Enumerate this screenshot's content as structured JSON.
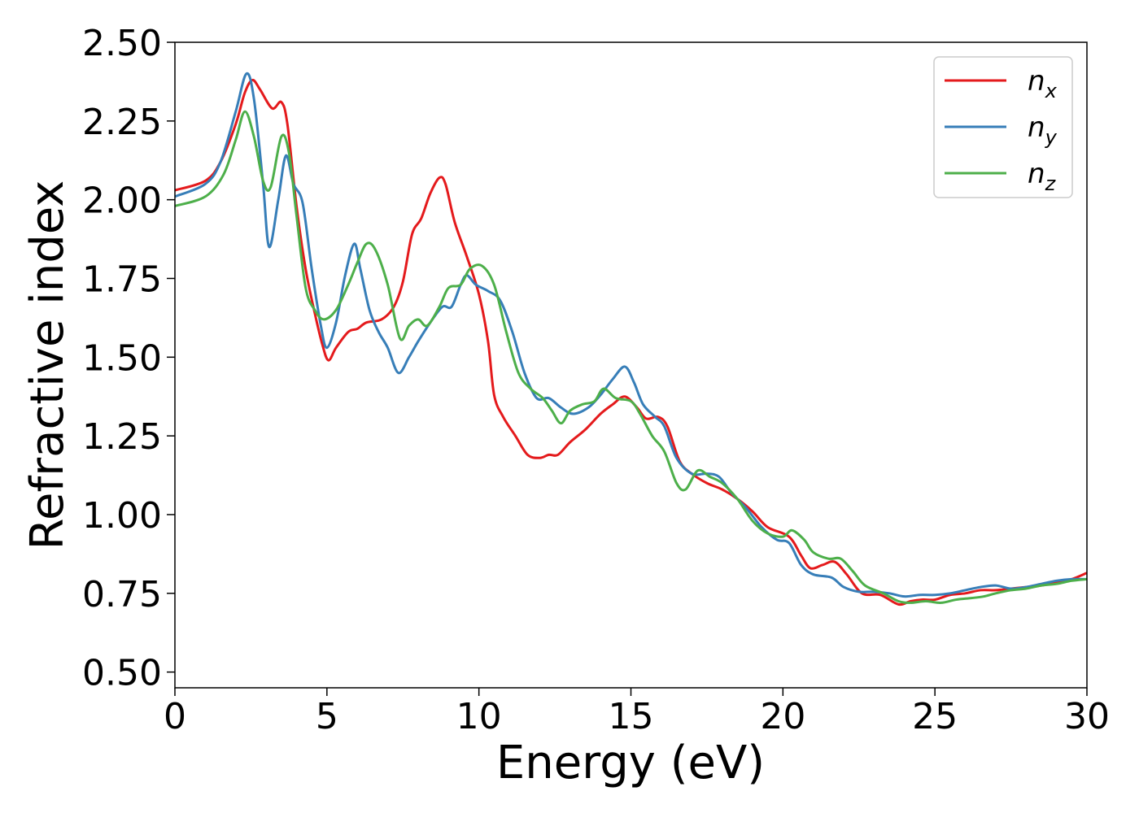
{
  "chart_data": {
    "type": "line",
    "xlabel": "Energy (eV)",
    "ylabel": "Refractive index",
    "xlim": [
      0,
      30
    ],
    "ylim": [
      0.45,
      2.5
    ],
    "xticks": [
      0,
      5,
      10,
      15,
      20,
      25,
      30
    ],
    "xtick_labels": [
      "0",
      "5",
      "10",
      "15",
      "20",
      "25",
      "30"
    ],
    "yticks": [
      0.5,
      0.75,
      1.0,
      1.25,
      1.5,
      1.75,
      2.0,
      2.25,
      2.5
    ],
    "ytick_labels": [
      "0.50",
      "0.75",
      "1.00",
      "1.25",
      "1.50",
      "1.75",
      "2.00",
      "2.25",
      "2.50"
    ],
    "grid": false,
    "legend": "top-right",
    "series": [
      {
        "name": "n",
        "subscript": "x",
        "color": "#e41a1c",
        "points": [
          [
            0,
            2.03
          ],
          [
            1,
            2.06
          ],
          [
            1.5,
            2.12
          ],
          [
            2,
            2.24
          ],
          [
            2.3,
            2.34
          ],
          [
            2.55,
            2.38
          ],
          [
            2.8,
            2.35
          ],
          [
            3.2,
            2.29
          ],
          [
            3.5,
            2.31
          ],
          [
            3.7,
            2.24
          ],
          [
            4.0,
            1.98
          ],
          [
            4.3,
            1.78
          ],
          [
            4.6,
            1.64
          ],
          [
            4.85,
            1.54
          ],
          [
            5.05,
            1.49
          ],
          [
            5.3,
            1.53
          ],
          [
            5.7,
            1.58
          ],
          [
            6.0,
            1.59
          ],
          [
            6.3,
            1.61
          ],
          [
            6.8,
            1.62
          ],
          [
            7.2,
            1.66
          ],
          [
            7.5,
            1.74
          ],
          [
            7.8,
            1.89
          ],
          [
            8.1,
            1.94
          ],
          [
            8.4,
            2.02
          ],
          [
            8.7,
            2.07
          ],
          [
            8.9,
            2.05
          ],
          [
            9.2,
            1.93
          ],
          [
            9.6,
            1.82
          ],
          [
            10.0,
            1.7
          ],
          [
            10.3,
            1.55
          ],
          [
            10.5,
            1.38
          ],
          [
            10.8,
            1.31
          ],
          [
            11.2,
            1.25
          ],
          [
            11.6,
            1.19
          ],
          [
            12.0,
            1.18
          ],
          [
            12.3,
            1.19
          ],
          [
            12.6,
            1.19
          ],
          [
            13.0,
            1.23
          ],
          [
            13.5,
            1.27
          ],
          [
            14.0,
            1.32
          ],
          [
            14.4,
            1.35
          ],
          [
            14.8,
            1.375
          ],
          [
            15.2,
            1.34
          ],
          [
            15.5,
            1.305
          ],
          [
            15.9,
            1.31
          ],
          [
            16.2,
            1.28
          ],
          [
            16.6,
            1.17
          ],
          [
            17.0,
            1.13
          ],
          [
            17.5,
            1.1
          ],
          [
            18.0,
            1.08
          ],
          [
            18.5,
            1.05
          ],
          [
            19.0,
            1.01
          ],
          [
            19.5,
            0.96
          ],
          [
            20.2,
            0.93
          ],
          [
            20.6,
            0.87
          ],
          [
            20.9,
            0.83
          ],
          [
            21.3,
            0.84
          ],
          [
            21.7,
            0.85
          ],
          [
            22.1,
            0.81
          ],
          [
            22.6,
            0.75
          ],
          [
            23.2,
            0.745
          ],
          [
            23.8,
            0.715
          ],
          [
            24.2,
            0.725
          ],
          [
            24.6,
            0.73
          ],
          [
            25.0,
            0.73
          ],
          [
            25.5,
            0.745
          ],
          [
            26.0,
            0.75
          ],
          [
            26.5,
            0.76
          ],
          [
            27.0,
            0.76
          ],
          [
            27.5,
            0.765
          ],
          [
            28.0,
            0.77
          ],
          [
            28.5,
            0.775
          ],
          [
            29.0,
            0.785
          ],
          [
            29.5,
            0.795
          ],
          [
            30.0,
            0.815
          ]
        ]
      },
      {
        "name": "n",
        "subscript": "y",
        "color": "#377eb8",
        "points": [
          [
            0,
            2.01
          ],
          [
            1,
            2.05
          ],
          [
            1.5,
            2.12
          ],
          [
            2,
            2.28
          ],
          [
            2.35,
            2.4
          ],
          [
            2.6,
            2.32
          ],
          [
            2.9,
            2.05
          ],
          [
            3.1,
            1.85
          ],
          [
            3.4,
            2.0
          ],
          [
            3.65,
            2.14
          ],
          [
            3.9,
            2.05
          ],
          [
            4.2,
            1.99
          ],
          [
            4.5,
            1.78
          ],
          [
            4.8,
            1.6
          ],
          [
            5.0,
            1.53
          ],
          [
            5.3,
            1.61
          ],
          [
            5.6,
            1.76
          ],
          [
            5.9,
            1.86
          ],
          [
            6.1,
            1.78
          ],
          [
            6.4,
            1.65
          ],
          [
            6.7,
            1.58
          ],
          [
            7.0,
            1.53
          ],
          [
            7.35,
            1.45
          ],
          [
            7.7,
            1.5
          ],
          [
            8.0,
            1.55
          ],
          [
            8.4,
            1.61
          ],
          [
            8.8,
            1.66
          ],
          [
            9.1,
            1.66
          ],
          [
            9.4,
            1.73
          ],
          [
            9.6,
            1.76
          ],
          [
            9.9,
            1.73
          ],
          [
            10.3,
            1.71
          ],
          [
            10.7,
            1.68
          ],
          [
            11.1,
            1.58
          ],
          [
            11.5,
            1.45
          ],
          [
            11.9,
            1.37
          ],
          [
            12.3,
            1.37
          ],
          [
            12.7,
            1.34
          ],
          [
            13.1,
            1.32
          ],
          [
            13.6,
            1.34
          ],
          [
            14.0,
            1.38
          ],
          [
            14.4,
            1.43
          ],
          [
            14.8,
            1.47
          ],
          [
            15.1,
            1.42
          ],
          [
            15.4,
            1.35
          ],
          [
            15.8,
            1.31
          ],
          [
            16.1,
            1.28
          ],
          [
            16.5,
            1.18
          ],
          [
            17.0,
            1.13
          ],
          [
            17.5,
            1.13
          ],
          [
            17.9,
            1.12
          ],
          [
            18.3,
            1.07
          ],
          [
            18.8,
            1.02
          ],
          [
            19.3,
            0.96
          ],
          [
            19.8,
            0.92
          ],
          [
            20.2,
            0.91
          ],
          [
            20.6,
            0.84
          ],
          [
            21.0,
            0.81
          ],
          [
            21.6,
            0.8
          ],
          [
            22.0,
            0.77
          ],
          [
            22.5,
            0.755
          ],
          [
            23.0,
            0.755
          ],
          [
            23.5,
            0.75
          ],
          [
            24.0,
            0.74
          ],
          [
            24.5,
            0.745
          ],
          [
            25.0,
            0.745
          ],
          [
            25.5,
            0.75
          ],
          [
            26.0,
            0.76
          ],
          [
            26.5,
            0.77
          ],
          [
            27.0,
            0.775
          ],
          [
            27.5,
            0.765
          ],
          [
            28.0,
            0.77
          ],
          [
            28.5,
            0.78
          ],
          [
            29.0,
            0.79
          ],
          [
            29.5,
            0.795
          ],
          [
            30.0,
            0.795
          ]
        ]
      },
      {
        "name": "n",
        "subscript": "z",
        "color": "#4daf4a",
        "points": [
          [
            0,
            1.98
          ],
          [
            1,
            2.01
          ],
          [
            1.6,
            2.08
          ],
          [
            2.0,
            2.19
          ],
          [
            2.3,
            2.28
          ],
          [
            2.6,
            2.2
          ],
          [
            2.9,
            2.06
          ],
          [
            3.15,
            2.04
          ],
          [
            3.5,
            2.2
          ],
          [
            3.75,
            2.15
          ],
          [
            4.0,
            1.95
          ],
          [
            4.3,
            1.72
          ],
          [
            4.6,
            1.65
          ],
          [
            4.9,
            1.62
          ],
          [
            5.3,
            1.65
          ],
          [
            5.7,
            1.73
          ],
          [
            6.0,
            1.8
          ],
          [
            6.3,
            1.86
          ],
          [
            6.6,
            1.84
          ],
          [
            7.0,
            1.73
          ],
          [
            7.4,
            1.56
          ],
          [
            7.7,
            1.6
          ],
          [
            8.0,
            1.62
          ],
          [
            8.3,
            1.6
          ],
          [
            8.7,
            1.66
          ],
          [
            9.0,
            1.72
          ],
          [
            9.4,
            1.73
          ],
          [
            9.7,
            1.78
          ],
          [
            10.1,
            1.79
          ],
          [
            10.5,
            1.73
          ],
          [
            10.9,
            1.58
          ],
          [
            11.3,
            1.45
          ],
          [
            11.7,
            1.4
          ],
          [
            12.1,
            1.37
          ],
          [
            12.4,
            1.33
          ],
          [
            12.7,
            1.29
          ],
          [
            13.0,
            1.33
          ],
          [
            13.4,
            1.35
          ],
          [
            13.8,
            1.36
          ],
          [
            14.1,
            1.4
          ],
          [
            14.5,
            1.37
          ],
          [
            15.0,
            1.36
          ],
          [
            15.3,
            1.32
          ],
          [
            15.7,
            1.25
          ],
          [
            16.1,
            1.2
          ],
          [
            16.5,
            1.1
          ],
          [
            16.8,
            1.08
          ],
          [
            17.2,
            1.14
          ],
          [
            17.6,
            1.12
          ],
          [
            18.0,
            1.1
          ],
          [
            18.5,
            1.05
          ],
          [
            19.0,
            0.98
          ],
          [
            19.5,
            0.94
          ],
          [
            20.0,
            0.93
          ],
          [
            20.3,
            0.95
          ],
          [
            20.7,
            0.92
          ],
          [
            21.0,
            0.88
          ],
          [
            21.5,
            0.86
          ],
          [
            21.9,
            0.86
          ],
          [
            22.3,
            0.82
          ],
          [
            22.7,
            0.775
          ],
          [
            23.3,
            0.75
          ],
          [
            23.8,
            0.725
          ],
          [
            24.2,
            0.72
          ],
          [
            24.7,
            0.725
          ],
          [
            25.2,
            0.72
          ],
          [
            25.7,
            0.73
          ],
          [
            26.2,
            0.735
          ],
          [
            26.6,
            0.74
          ],
          [
            27.0,
            0.75
          ],
          [
            27.5,
            0.76
          ],
          [
            28.0,
            0.765
          ],
          [
            28.5,
            0.775
          ],
          [
            29.0,
            0.78
          ],
          [
            29.5,
            0.79
          ],
          [
            30.0,
            0.795
          ]
        ]
      }
    ]
  }
}
